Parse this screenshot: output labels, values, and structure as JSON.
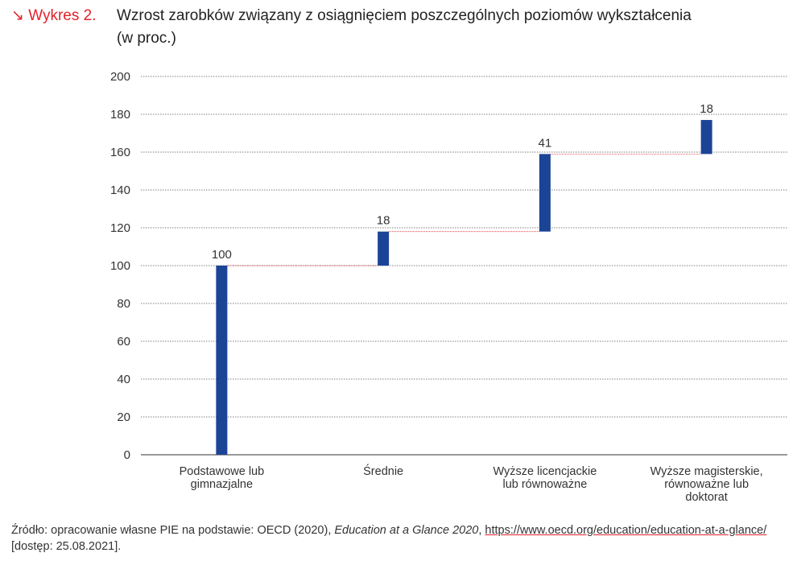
{
  "header": {
    "tag": "↘ Wykres 2.",
    "title": "Wzrost zarobków związany z osiągnięciem poszczególnych poziomów wykształcenia (w proc.)"
  },
  "chart_data": {
    "type": "bar",
    "subtype": "waterfall",
    "title": "Wzrost zarobków związany z osiągnięciem poszczególnych poziomów wykształcenia (w proc.)",
    "categories": [
      [
        "Podstawowe lub",
        "gimnazjalne"
      ],
      [
        "Średnie"
      ],
      [
        "Wyższe licencjackie",
        "lub równoważne"
      ],
      [
        "Wyższe magisterskie,",
        "równoważne lub",
        "doktorat"
      ]
    ],
    "values": [
      100,
      18,
      41,
      18
    ],
    "data_labels": [
      "100",
      "18",
      "41",
      "18"
    ],
    "ylim": [
      0,
      200
    ],
    "yticks": [
      0,
      20,
      40,
      60,
      80,
      100,
      120,
      140,
      160,
      180,
      200
    ],
    "grid": true,
    "bar_color": "#1c4496",
    "connector_color": "#e3222b"
  },
  "footer": {
    "source_prefix": "Źródło: opracowanie własne PIE na podstawie: OECD (2020), ",
    "source_italic": "Education at a Glance 2020",
    "source_sep": ", ",
    "link": "https://www.oecd.org/education/education-at-a-glance/",
    "source_suffix": " [dostęp: 25.08.2021]."
  }
}
